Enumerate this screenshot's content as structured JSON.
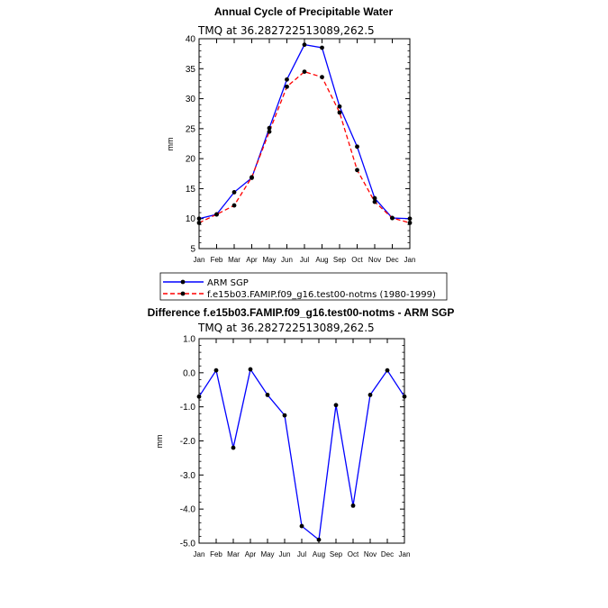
{
  "chart_data": [
    {
      "type": "line",
      "title": "Annual Cycle of Precipitable Water",
      "subtitle": "TMQ at 36.282722513089,262.5",
      "xlabel": "",
      "ylabel": "mm",
      "categories": [
        "Jan",
        "Feb",
        "Mar",
        "Apr",
        "May",
        "Jun",
        "Jul",
        "Aug",
        "Sep",
        "Oct",
        "Nov",
        "Dec",
        "Jan"
      ],
      "ylim": [
        5,
        40
      ],
      "yticks": [
        5,
        10,
        15,
        20,
        25,
        30,
        35,
        40
      ],
      "legend": "bottom",
      "series": [
        {
          "name": "ARM SGP",
          "color": "#0000ff",
          "dash": "solid",
          "values": [
            10.0,
            10.7,
            14.4,
            16.8,
            25.1,
            33.2,
            39.0,
            38.5,
            28.7,
            22.0,
            13.4,
            10.1,
            10.0
          ]
        },
        {
          "name": "f.e15b03.FAMIP.f09_g16.test00-notms (1980-1999)",
          "color": "#ff0000",
          "dash": "dashed",
          "values": [
            9.3,
            10.7,
            12.2,
            16.9,
            24.5,
            32.0,
            34.5,
            33.6,
            27.7,
            18.1,
            12.8,
            10.1,
            9.3
          ]
        }
      ]
    },
    {
      "type": "line",
      "title": "Difference f.e15b03.FAMIP.f09_g16.test00-notms - ARM SGP",
      "subtitle": "TMQ at 36.282722513089,262.5",
      "xlabel": "",
      "ylabel": "mm",
      "categories": [
        "Jan",
        "Feb",
        "Mar",
        "Apr",
        "May",
        "Jun",
        "Jul",
        "Aug",
        "Sep",
        "Oct",
        "Nov",
        "Dec",
        "Jan"
      ],
      "ylim": [
        -5.0,
        1.0
      ],
      "yticks": [
        "-5.0",
        "-4.0",
        "-3.0",
        "-2.0",
        "-1.0",
        "0.0",
        "1.0"
      ],
      "series": [
        {
          "color": "#0000ff",
          "dash": "solid",
          "values": [
            -0.7,
            0.07,
            -2.2,
            0.1,
            -0.65,
            -1.25,
            -4.5,
            -4.9,
            -0.95,
            -3.9,
            -0.65,
            0.07,
            -0.7
          ]
        }
      ]
    }
  ]
}
